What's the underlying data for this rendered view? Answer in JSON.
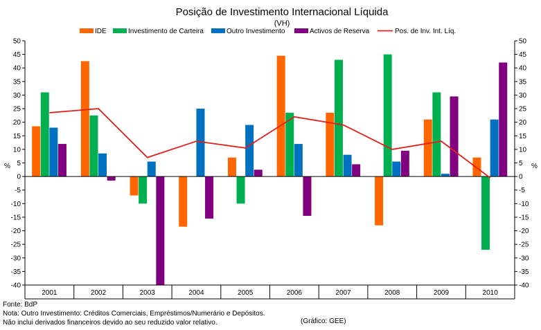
{
  "chart_data": {
    "type": "bar",
    "title": "Posição de Investimento Internacional Líquida",
    "subtitle": "(VH)",
    "ylabel_left": "%",
    "ylabel_right": "%",
    "ylim": [
      -40,
      50
    ],
    "yticks": [
      50,
      45,
      40,
      35,
      30,
      25,
      20,
      15,
      10,
      5,
      0,
      -5,
      -10,
      -15,
      -20,
      -25,
      -30,
      -35,
      -40
    ],
    "categories": [
      "2001",
      "2002",
      "2003",
      "2004",
      "2005",
      "2006",
      "2007",
      "2008",
      "2009",
      "2010"
    ],
    "series": [
      {
        "name": "IDE",
        "kind": "bar",
        "color": "#ff6600",
        "values": [
          18.5,
          42.5,
          -7,
          -18.5,
          7,
          44.5,
          23.5,
          -18,
          21,
          7
        ]
      },
      {
        "name": "Investimento de Carteira",
        "kind": "bar",
        "color": "#00b050",
        "values": [
          31,
          22.5,
          -10,
          0,
          -10,
          23.5,
          43,
          45,
          31,
          -27
        ]
      },
      {
        "name": "Outro Investimento",
        "kind": "bar",
        "color": "#0070c0",
        "values": [
          18,
          8.5,
          5.5,
          25,
          19,
          12,
          8,
          5.5,
          1,
          21
        ]
      },
      {
        "name": "Activos de Reserva",
        "kind": "bar",
        "color": "#800080",
        "values": [
          12,
          -1.5,
          -40,
          -15.5,
          2.5,
          -14.5,
          4.5,
          9.5,
          29.5,
          42
        ]
      },
      {
        "name": "Pos. de Inv. Int. Líq.",
        "kind": "line",
        "color": "#e0201b",
        "values": [
          23.5,
          25,
          7,
          13,
          10.5,
          22,
          19,
          10,
          13,
          -0.5
        ]
      }
    ],
    "legend_position": "top",
    "grid": false
  },
  "footer": {
    "source": "Fonte: BdP",
    "note1": "Nota: Outro Investimento: Créditos Comerciais, Empréstimos/Numerário e Depósitos.",
    "note2": "Não inclui derivados financeiros devido ao seu reduzido valor relativo.",
    "credit": "(Gráfico: GEE)"
  }
}
